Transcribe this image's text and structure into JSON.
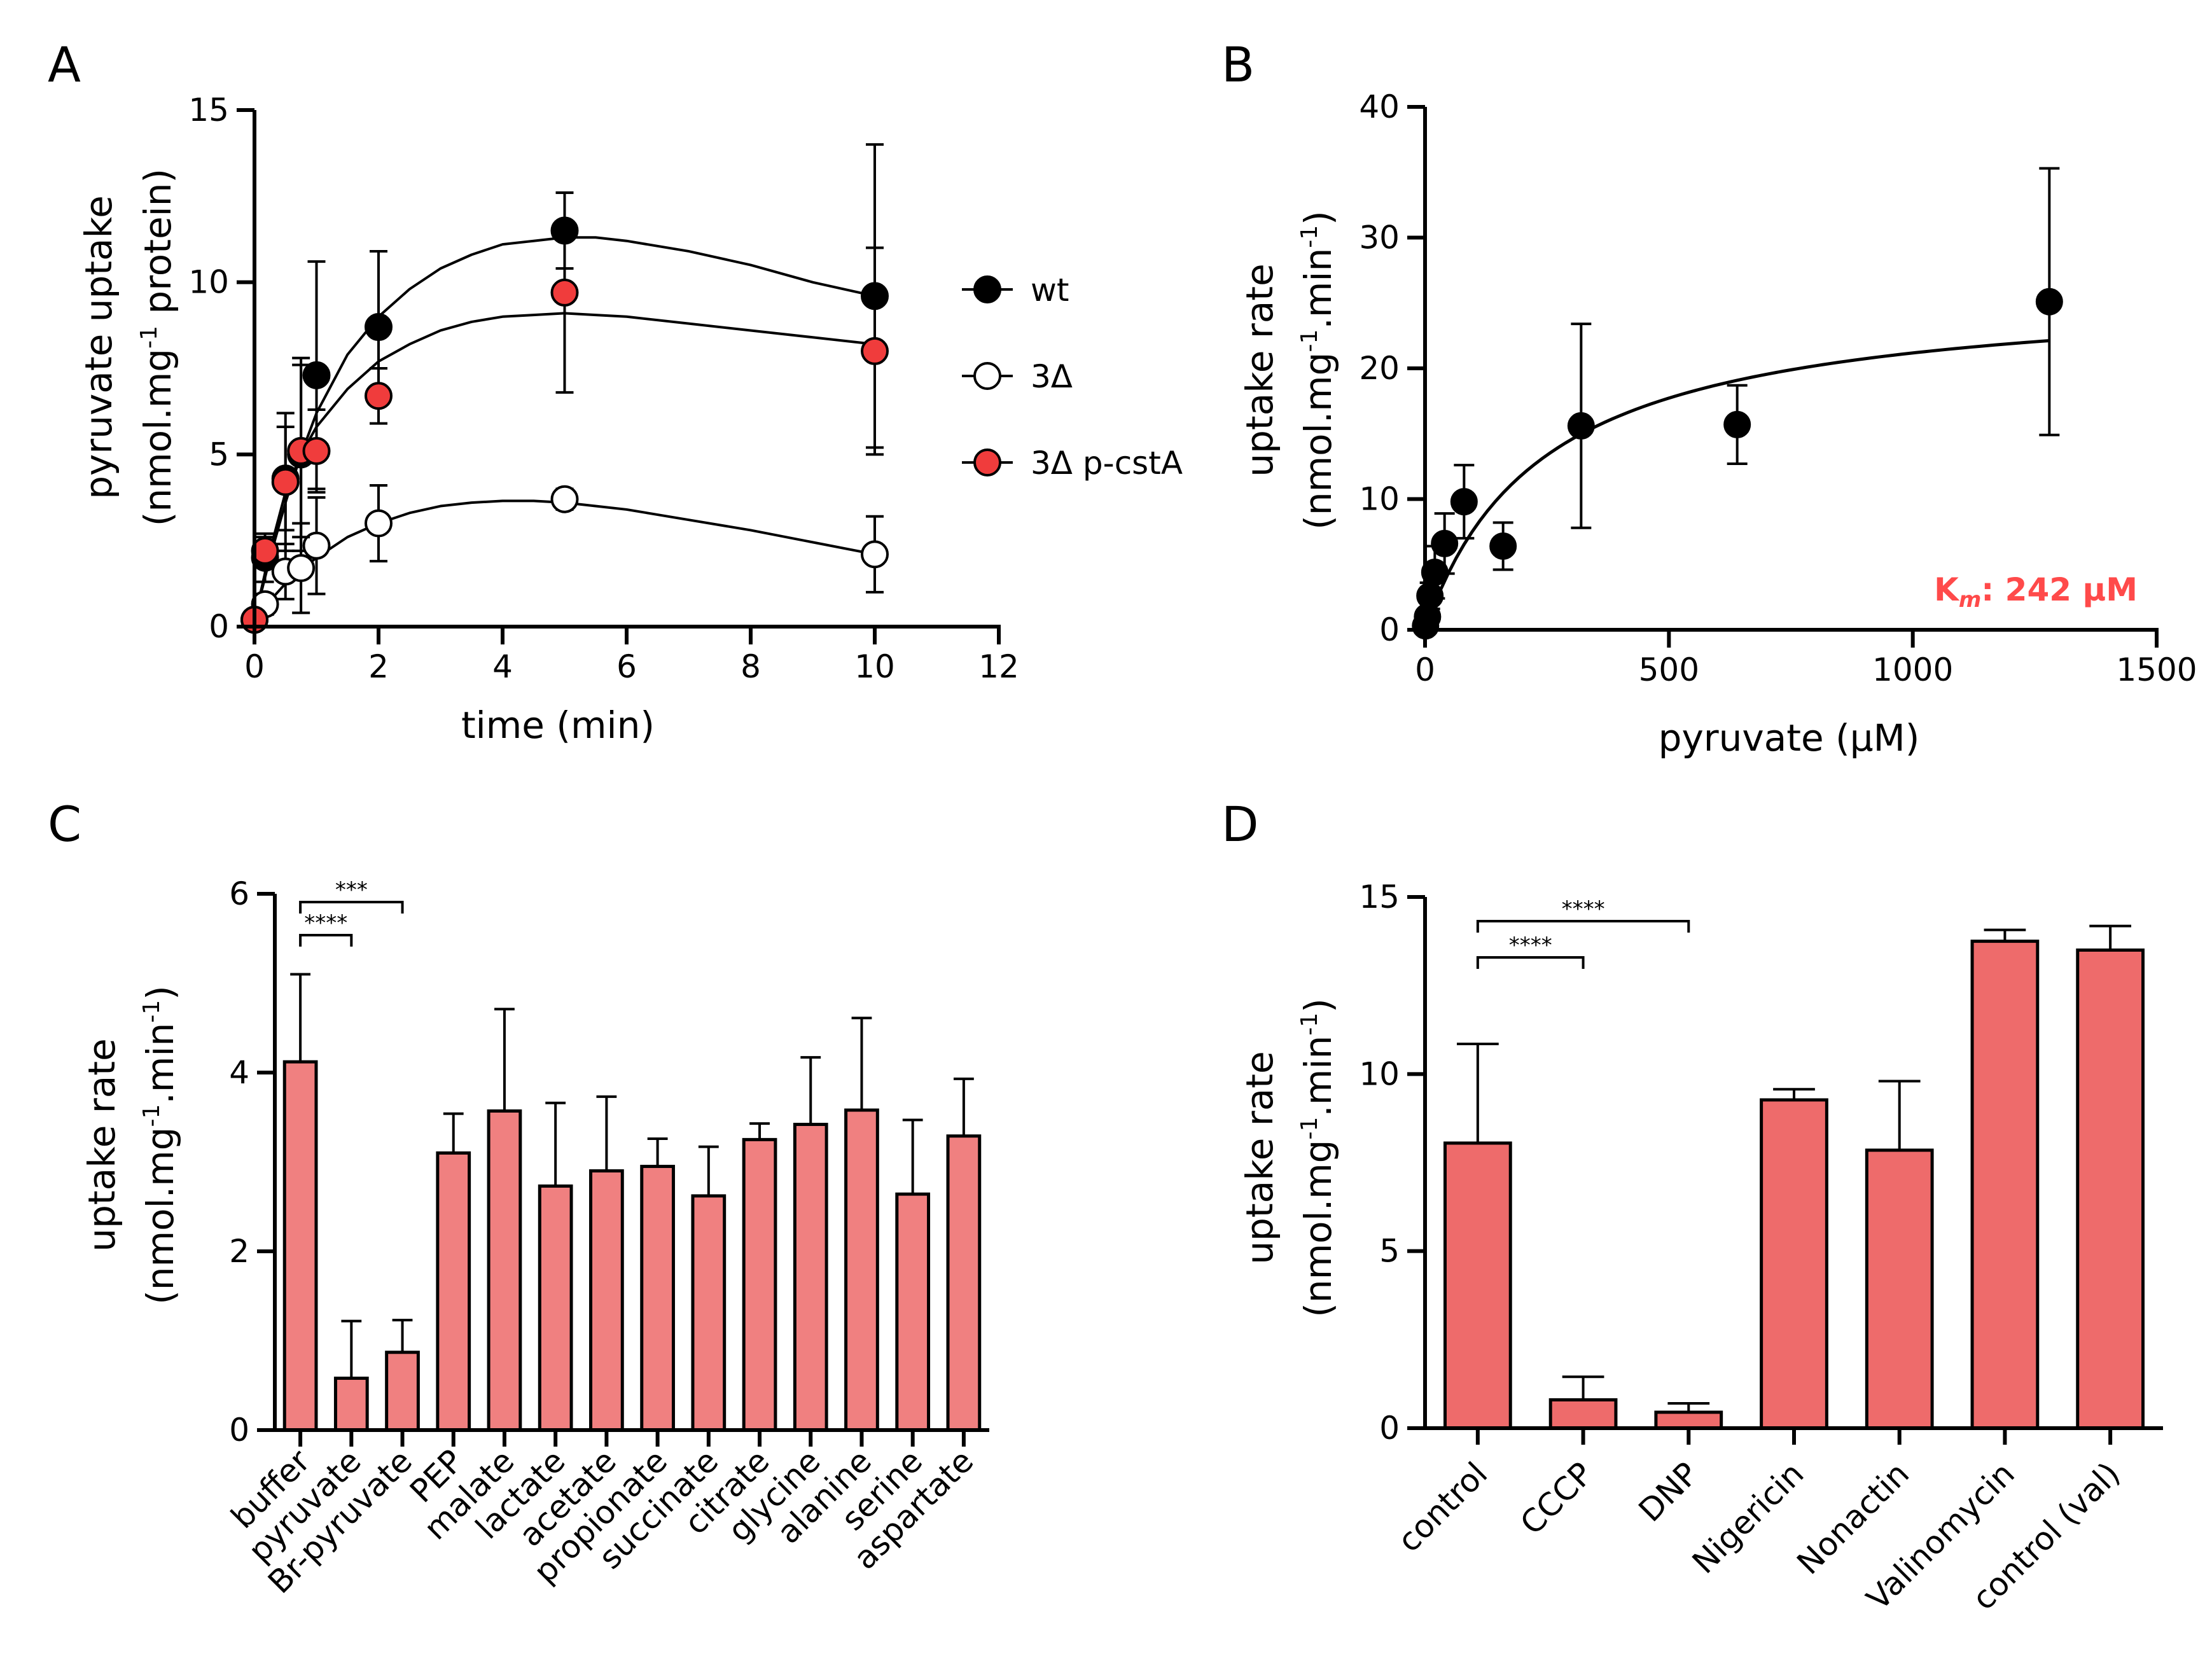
{
  "chart_data": [
    {
      "panel": "A",
      "type": "scatter",
      "xlabel": "time (min)",
      "ylabel": "pyruvate uptake",
      "ylabel2_pre": "(nmol.mg",
      "ylabel2_sup": "-1",
      "ylabel2_post": " protein)",
      "xlim": [
        0,
        12
      ],
      "ylim": [
        0,
        15
      ],
      "xticks": [
        0,
        2,
        4,
        6,
        8,
        10,
        12
      ],
      "yticks": [
        0,
        5,
        10,
        15
      ],
      "legend_position": "top-right",
      "series": [
        {
          "name": "wt",
          "fill": "#000000",
          "x": [
            0,
            0.17,
            0.5,
            0.75,
            1,
            2,
            5,
            10
          ],
          "y": [
            0.2,
            2.0,
            4.3,
            5.0,
            7.3,
            8.7,
            11.5,
            9.6
          ],
          "err": [
            0.1,
            0.7,
            1.5,
            2.8,
            3.3,
            2.2,
            1.1,
            4.4
          ],
          "fit_x": [
            0,
            0.25,
            0.5,
            0.75,
            1,
            1.5,
            2,
            2.5,
            3,
            3.5,
            4,
            4.5,
            5,
            5.5,
            6,
            7,
            8,
            9,
            10
          ],
          "fit_y": [
            0.2,
            2.0,
            3.6,
            5.0,
            6.2,
            7.9,
            9.0,
            9.8,
            10.4,
            10.8,
            11.1,
            11.2,
            11.3,
            11.3,
            11.2,
            10.9,
            10.5,
            10.0,
            9.6
          ]
        },
        {
          "name": "3Δ",
          "fill": "#ffffff",
          "x": [
            0,
            0.17,
            0.5,
            0.75,
            1,
            2,
            5,
            10
          ],
          "y": [
            0.2,
            0.65,
            1.6,
            1.7,
            2.35,
            3.0,
            3.7,
            2.1
          ],
          "err": [
            0.1,
            0.3,
            0.8,
            1.3,
            1.4,
            1.1,
            0.3,
            1.1
          ],
          "fit_x": [
            0,
            0.25,
            0.5,
            0.75,
            1,
            1.5,
            2,
            2.5,
            3,
            3.5,
            4,
            4.5,
            5,
            5.5,
            6,
            7,
            8,
            9,
            10
          ],
          "fit_y": [
            0.2,
            0.75,
            1.25,
            1.65,
            2.0,
            2.6,
            3.0,
            3.3,
            3.5,
            3.6,
            3.65,
            3.65,
            3.6,
            3.5,
            3.4,
            3.1,
            2.8,
            2.45,
            2.1
          ]
        },
        {
          "name": "3Δ p-cstA",
          "fill": "#f03c3c",
          "x": [
            0,
            0.17,
            0.5,
            0.75,
            1,
            2,
            5,
            10
          ],
          "y": [
            0.2,
            2.2,
            4.2,
            5.1,
            5.1,
            6.7,
            9.7,
            8.0
          ],
          "err": [
            0.1,
            0.4,
            2.0,
            2.5,
            1.2,
            0.8,
            2.9,
            3.0
          ],
          "fit_x": [
            0,
            0.25,
            0.5,
            0.75,
            1,
            1.5,
            2,
            2.5,
            3,
            3.5,
            4,
            4.5,
            5,
            5.5,
            6,
            7,
            8,
            9,
            10
          ],
          "fit_y": [
            0.2,
            2.2,
            3.9,
            5.0,
            5.8,
            6.9,
            7.7,
            8.2,
            8.6,
            8.85,
            9.0,
            9.05,
            9.1,
            9.05,
            9.0,
            8.8,
            8.6,
            8.4,
            8.2
          ]
        }
      ]
    },
    {
      "panel": "B",
      "type": "scatter",
      "xlabel": "pyruvate (μM)",
      "ylabel": "uptake rate",
      "ylabel2_pre": "(nmol.mg",
      "ylabel2_sup1": "-1",
      "ylabel2_mid": ".min",
      "ylabel2_sup2": "-1",
      "ylabel2_post": ")",
      "xlim": [
        0,
        1500
      ],
      "ylim": [
        0,
        40
      ],
      "xticks": [
        0,
        500,
        1000,
        1500
      ],
      "yticks": [
        0,
        10,
        20,
        30,
        40
      ],
      "annotation_km_label": "K",
      "annotation_km_sub": "m",
      "annotation_km_value": ": 242 μM",
      "fit": {
        "model": "Michaelis-Menten",
        "Vmax": 26.3,
        "Km": 242
      },
      "points": {
        "x": [
          1,
          5,
          10,
          20,
          40,
          80,
          160,
          320,
          640,
          1280
        ],
        "y": [
          0.3,
          1.0,
          2.6,
          4.4,
          6.6,
          9.8,
          6.4,
          15.6,
          15.7,
          25.1
        ],
        "err": [
          0.3,
          0.5,
          1.0,
          2.0,
          2.3,
          2.8,
          1.8,
          7.8,
          3.0,
          10.2
        ]
      }
    },
    {
      "panel": "C",
      "type": "bar",
      "ylabel": "uptake rate",
      "ylabel2_pre": "(nmol.mg",
      "ylabel2_sup1": "-1",
      "ylabel2_mid": ".min",
      "ylabel2_sup2": "-1",
      "ylabel2_post": ")",
      "ylim": [
        0,
        6
      ],
      "yticks": [
        0,
        2,
        4,
        6
      ],
      "bar_color": "#f08080",
      "categories": [
        "buffer",
        "pyruvate",
        "Br-pyruvate",
        "PEP",
        "malate",
        "lactate",
        "acetate",
        "propionate",
        "succinate",
        "citrate",
        "glycine",
        "alanine",
        "serine",
        "aspartate"
      ],
      "values": [
        4.12,
        0.58,
        0.87,
        3.1,
        3.57,
        2.73,
        2.9,
        2.95,
        2.62,
        3.25,
        3.42,
        3.58,
        2.64,
        3.29
      ],
      "errors": [
        0.98,
        0.64,
        0.36,
        0.44,
        1.14,
        0.93,
        0.83,
        0.31,
        0.55,
        0.18,
        0.75,
        1.03,
        0.83,
        0.64
      ],
      "significance": [
        {
          "from": 0,
          "to": 1,
          "label": "****"
        },
        {
          "from": 0,
          "to": 2,
          "label": "***"
        }
      ]
    },
    {
      "panel": "D",
      "type": "bar",
      "ylabel": "uptake rate",
      "ylabel2_pre": "(nmol.mg",
      "ylabel2_sup1": "-1",
      "ylabel2_mid": ".min",
      "ylabel2_sup2": "-1",
      "ylabel2_post": ")",
      "ylim": [
        0,
        15
      ],
      "yticks": [
        0,
        5,
        10,
        15
      ],
      "bar_color": "#ee6b6b",
      "categories": [
        "control",
        "CCCP",
        "DNP",
        "Nigericin",
        "Nonactin",
        "Valinomycin",
        "control (val)"
      ],
      "values": [
        8.05,
        0.8,
        0.45,
        9.27,
        7.85,
        13.75,
        13.5
      ],
      "errors": [
        2.8,
        0.65,
        0.25,
        0.3,
        1.95,
        0.32,
        0.68
      ],
      "significance": [
        {
          "from": 0,
          "to": 1,
          "label": "****"
        },
        {
          "from": 0,
          "to": 2,
          "label": "****"
        }
      ]
    }
  ]
}
